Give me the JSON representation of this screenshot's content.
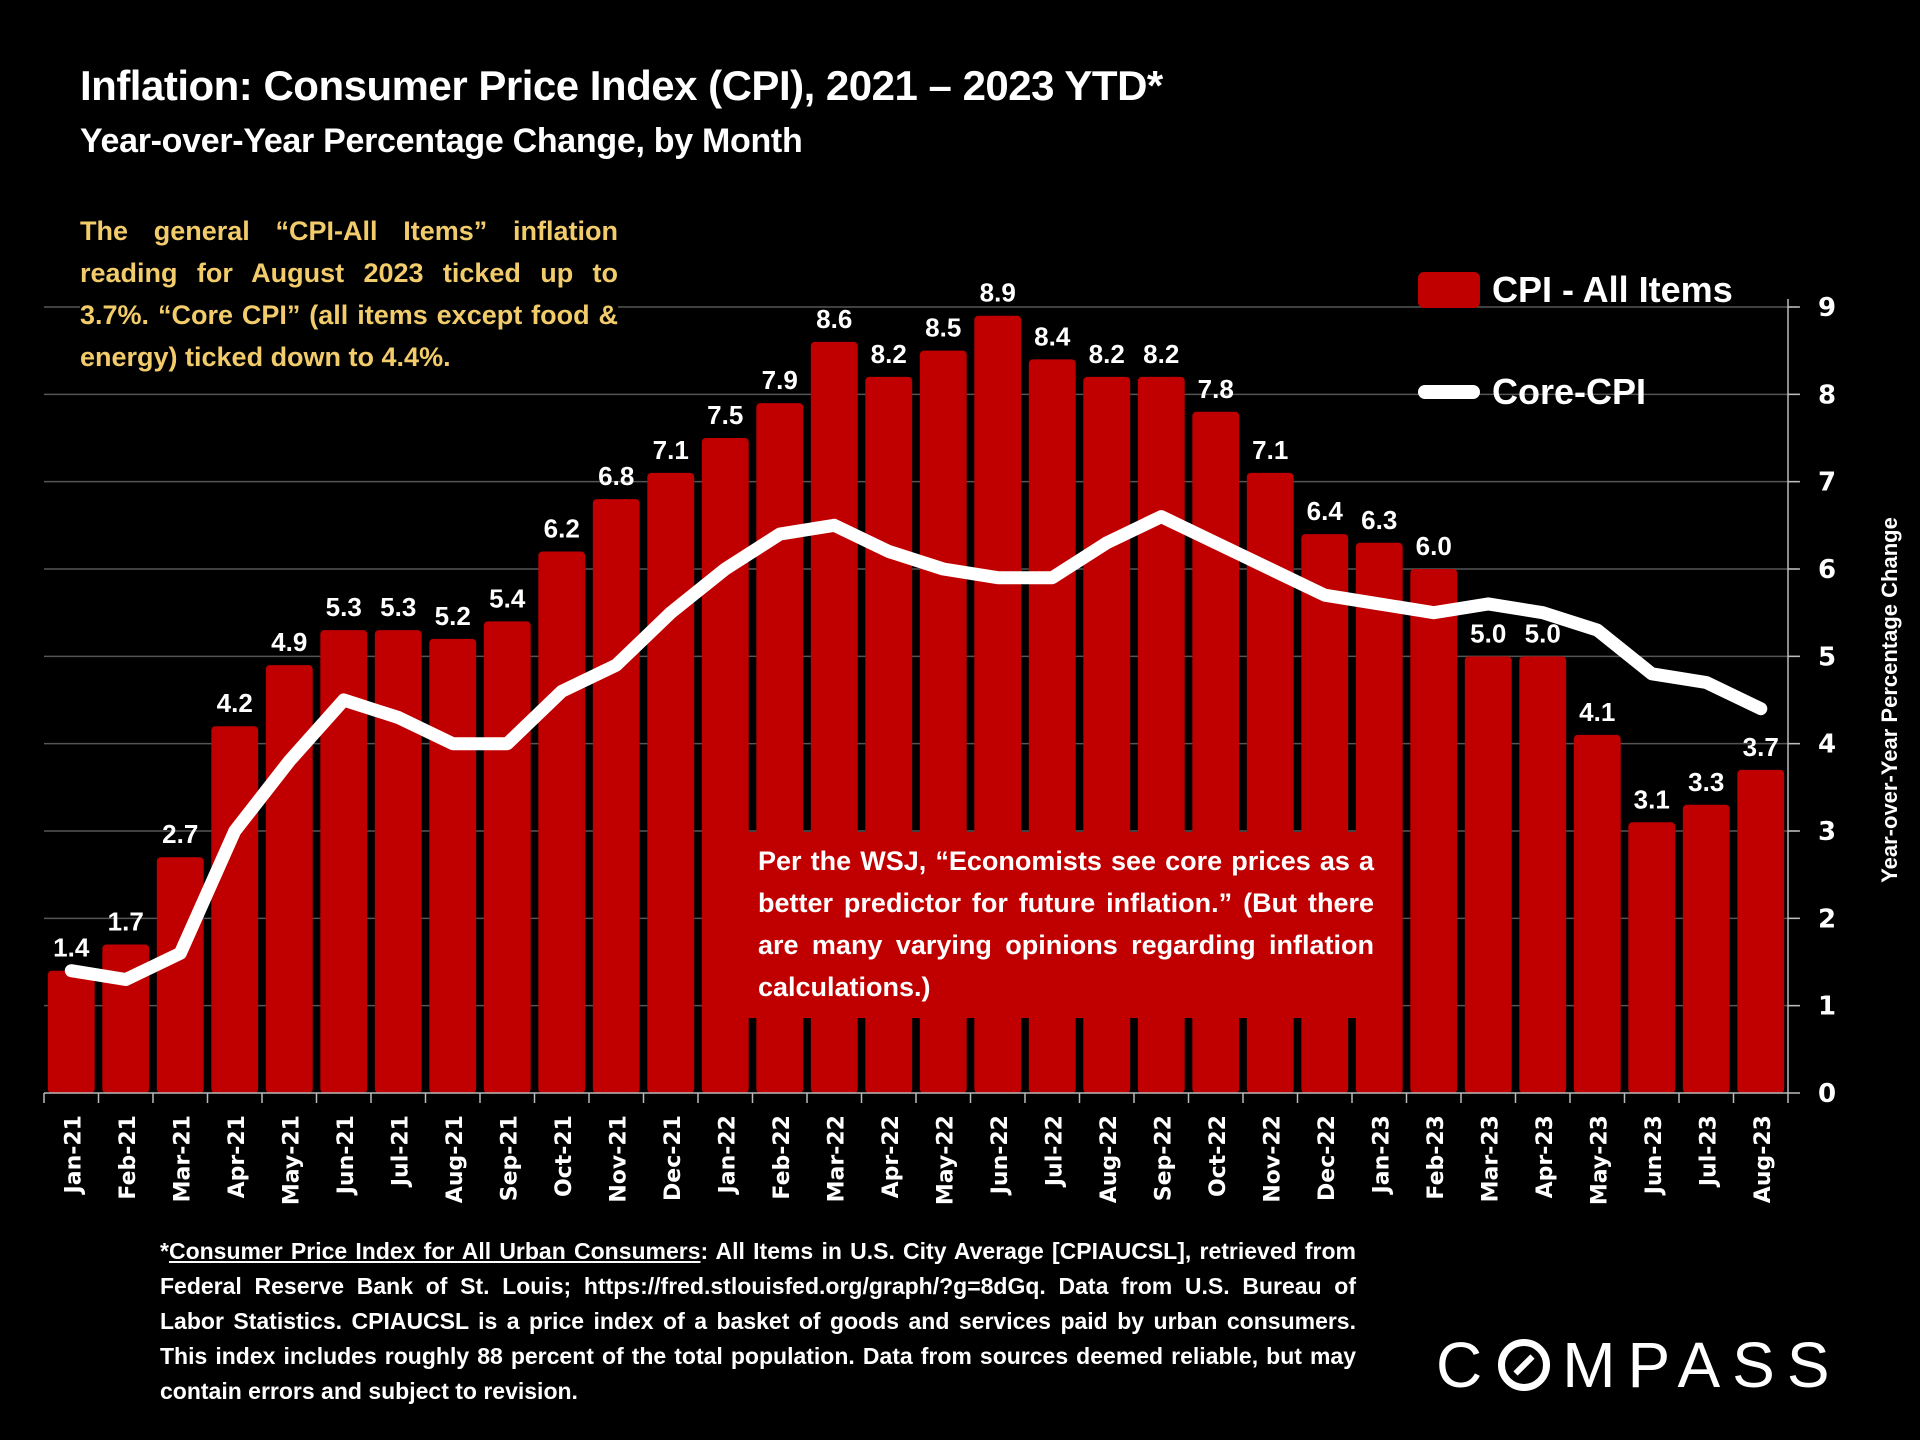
{
  "header": {
    "title": "Inflation: Consumer Price Index (CPI), 2021 – 2023 YTD*",
    "subtitle": "Year-over-Year Percentage Change, by Month"
  },
  "annotations": {
    "note": "The general “CPI-All Items” inflation reading for August 2023 ticked up to 3.7%. “Core CPI” (all items except food & energy) ticked down to 4.4%.",
    "wsj": "Per the WSJ, “Economists see core prices as a better predictor for future inflation.” (But there are many varying opinions regarding inflation calculations.)"
  },
  "footer": {
    "asterisk": "*",
    "link_text": "Consumer Price Index for All Urban Consumers",
    "text": ": All Items in U.S. City Average [CPIAUCSL], retrieved from Federal Reserve Bank of St. Louis; https://fred.stlouisfed.org/graph/?g=8dGq. Data from U.S. Bureau of Labor Statistics. CPIAUCSL is a price index of a basket of goods and services paid by urban consumers. This index includes roughly 88 percent of the total population. Data from sources deemed reliable, but may contain errors and subject to revision."
  },
  "logo": {
    "before": "C",
    "after": "MPASS"
  },
  "colors": {
    "bar": "#c00000",
    "line": "#ffffff",
    "note": "#f2cc6b",
    "grid": "#555555",
    "background": "#000000"
  },
  "chart_data": {
    "type": "bar",
    "title": "Inflation: Consumer Price Index (CPI), 2021 – 2023 YTD*",
    "subtitle": "Year-over-Year Percentage Change, by Month",
    "xlabel": "",
    "ylabel": "Year-over-Year Percentage Change",
    "ylim": [
      0,
      9
    ],
    "yticks": [
      0,
      1,
      2,
      3,
      4,
      5,
      6,
      7,
      8,
      9
    ],
    "y_axis_side": "right",
    "grid": true,
    "legend_position": "top-right",
    "categories": [
      "Jan-21",
      "Feb-21",
      "Mar-21",
      "Apr-21",
      "May-21",
      "Jun-21",
      "Jul-21",
      "Aug-21",
      "Sep-21",
      "Oct-21",
      "Nov-21",
      "Dec-21",
      "Jan-22",
      "Feb-22",
      "Mar-22",
      "Apr-22",
      "May-22",
      "Jun-22",
      "Jul-22",
      "Aug-22",
      "Sep-22",
      "Oct-22",
      "Nov-22",
      "Dec-22",
      "Jan-23",
      "Feb-23",
      "Mar-23",
      "Apr-23",
      "May-23",
      "Jun-23",
      "Jul-23",
      "Aug-23"
    ],
    "series": [
      {
        "name": "CPI - All Items",
        "type": "bar",
        "labels_shown": true,
        "values": [
          1.4,
          1.7,
          2.7,
          4.2,
          4.9,
          5.3,
          5.3,
          5.2,
          5.4,
          6.2,
          6.8,
          7.1,
          7.5,
          7.9,
          8.6,
          8.2,
          8.5,
          8.9,
          8.4,
          8.2,
          8.2,
          7.8,
          7.1,
          6.4,
          6.3,
          6.0,
          5.0,
          5.0,
          4.1,
          3.1,
          3.3,
          3.7
        ],
        "value_labels": [
          "1.4",
          "1.7",
          "2.7",
          "4.2",
          "4.9",
          "5.3",
          "5.3",
          "5.2",
          "5.4",
          "6.2",
          "6.8",
          "7.1",
          "7.5",
          "7.9",
          "8.6",
          "8.2",
          "8.5",
          "8.9",
          "8.4",
          "8.2",
          "8.2",
          "7.8",
          "7.1",
          "6.4",
          "6.3",
          "6.0",
          "5.0",
          "5.0",
          "4.1",
          "3.1",
          "3.3",
          "3.7"
        ]
      },
      {
        "name": "Core-CPI",
        "type": "line",
        "labels_shown": false,
        "values": [
          1.4,
          1.3,
          1.6,
          3.0,
          3.8,
          4.5,
          4.3,
          4.0,
          4.0,
          4.6,
          4.9,
          5.5,
          6.0,
          6.4,
          6.5,
          6.2,
          6.0,
          5.9,
          5.9,
          6.3,
          6.6,
          6.3,
          6.0,
          5.7,
          5.6,
          5.5,
          5.6,
          5.5,
          5.3,
          4.8,
          4.7,
          4.4
        ]
      }
    ]
  }
}
